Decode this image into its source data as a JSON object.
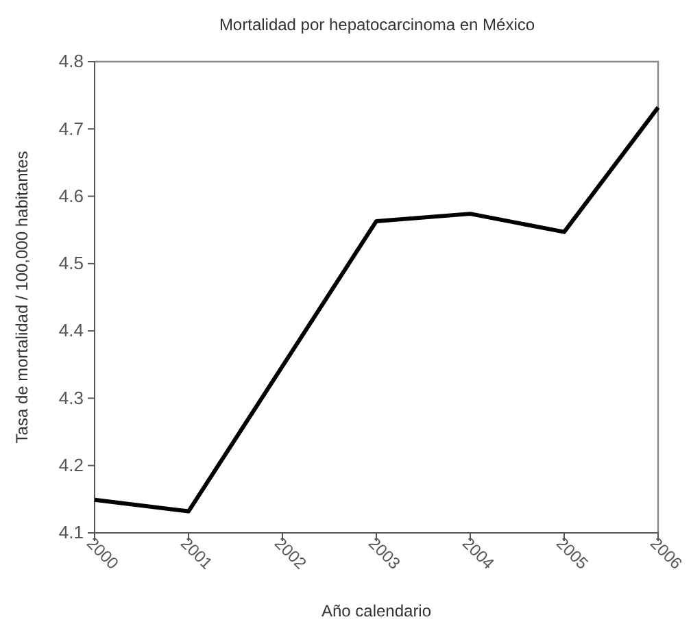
{
  "chart_data": {
    "type": "line",
    "title": "Mortalidad por hepatocarcinoma en México",
    "xlabel": "Año calendario",
    "ylabel": "Tasa de mortalidad / 100,000 habitantes",
    "x": [
      2000,
      2001,
      2002,
      2003,
      2004,
      2005,
      2006
    ],
    "series": [
      {
        "color": "#000000",
        "values": [
          4.149,
          4.132,
          null,
          4.563,
          4.574,
          4.547,
          4.732
        ]
      }
    ],
    "xlim": [
      2000,
      2006
    ],
    "xticks": [
      2000,
      2001,
      2002,
      2003,
      2004,
      2005,
      2006
    ],
    "ylim": [
      4.1,
      4.8
    ],
    "yticks": [
      4.1,
      4.2,
      4.3,
      4.4,
      4.5,
      4.6,
      4.7,
      4.8
    ],
    "grid": false,
    "marker": "none",
    "line_style": "solid"
  }
}
